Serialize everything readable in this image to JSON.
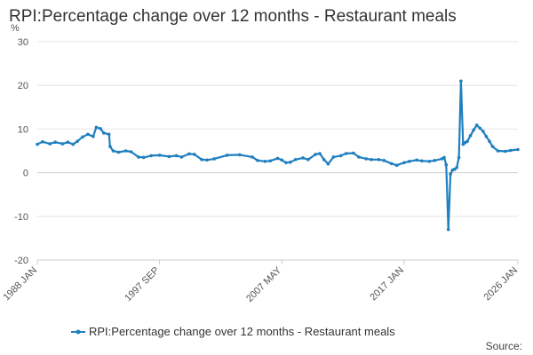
{
  "chart_data": {
    "type": "line",
    "title": "RPI:Percentage change over 12 months - Restaurant meals",
    "ylabel": "%",
    "ylim": [
      -20,
      30
    ],
    "yticks": [
      -20,
      -10,
      0,
      10,
      20,
      30
    ],
    "xlim": [
      "1988-01",
      "2026-01"
    ],
    "xtick_labels": [
      {
        "date": "1988-01",
        "label": "1988 JAN"
      },
      {
        "date": "1997-09",
        "label": "1997 SEP"
      },
      {
        "date": "2007-05",
        "label": "2007 MAY"
      },
      {
        "date": "2017-01",
        "label": "2017 JAN"
      },
      {
        "date": "2026-01",
        "label": "2026 JAN"
      }
    ],
    "grid": true,
    "legend_position": "bottom",
    "source": "Source:",
    "colors": {
      "series": "#1f7fbf",
      "grid": "#e6e6e6",
      "axis": "#ccc"
    },
    "series": [
      {
        "name": "RPI:Percentage change over 12 months - Restaurant meals",
        "points": [
          [
            "1988-01",
            6.5
          ],
          [
            "1988-06",
            7.1
          ],
          [
            "1989-01",
            6.6
          ],
          [
            "1989-06",
            7.0
          ],
          [
            "1990-01",
            6.6
          ],
          [
            "1990-06",
            7.0
          ],
          [
            "1990-11",
            6.5
          ],
          [
            "1991-03",
            7.2
          ],
          [
            "1991-08",
            8.2
          ],
          [
            "1992-01",
            8.8
          ],
          [
            "1992-06",
            8.3
          ],
          [
            "1992-09",
            10.4
          ],
          [
            "1993-01",
            10.1
          ],
          [
            "1993-04",
            9.1
          ],
          [
            "1993-09",
            8.8
          ],
          [
            "1993-10",
            6.0
          ],
          [
            "1994-01",
            5.0
          ],
          [
            "1994-06",
            4.7
          ],
          [
            "1995-01",
            5.0
          ],
          [
            "1995-06",
            4.8
          ],
          [
            "1996-01",
            3.6
          ],
          [
            "1996-06",
            3.5
          ],
          [
            "1997-01",
            3.9
          ],
          [
            "1997-09",
            4.0
          ],
          [
            "1998-06",
            3.7
          ],
          [
            "1999-01",
            3.9
          ],
          [
            "1999-06",
            3.6
          ],
          [
            "2000-01",
            4.3
          ],
          [
            "2000-06",
            4.2
          ],
          [
            "2001-01",
            3.0
          ],
          [
            "2001-06",
            2.9
          ],
          [
            "2002-01",
            3.2
          ],
          [
            "2003-01",
            4.0
          ],
          [
            "2004-01",
            4.1
          ],
          [
            "2005-01",
            3.6
          ],
          [
            "2005-06",
            2.8
          ],
          [
            "2006-01",
            2.6
          ],
          [
            "2006-06",
            2.7
          ],
          [
            "2007-01",
            3.3
          ],
          [
            "2007-05",
            2.9
          ],
          [
            "2007-09",
            2.3
          ],
          [
            "2008-01",
            2.4
          ],
          [
            "2008-06",
            3.0
          ],
          [
            "2009-01",
            3.4
          ],
          [
            "2009-06",
            3.0
          ],
          [
            "2010-01",
            4.2
          ],
          [
            "2010-05",
            4.4
          ],
          [
            "2010-09",
            3.0
          ],
          [
            "2011-01",
            2.0
          ],
          [
            "2011-06",
            3.6
          ],
          [
            "2012-01",
            3.9
          ],
          [
            "2012-06",
            4.4
          ],
          [
            "2013-01",
            4.5
          ],
          [
            "2013-06",
            3.6
          ],
          [
            "2014-01",
            3.2
          ],
          [
            "2014-06",
            3.0
          ],
          [
            "2015-01",
            3.0
          ],
          [
            "2015-06",
            2.8
          ],
          [
            "2016-01",
            2.1
          ],
          [
            "2016-06",
            1.7
          ],
          [
            "2017-01",
            2.3
          ],
          [
            "2017-06",
            2.6
          ],
          [
            "2018-01",
            2.9
          ],
          [
            "2018-06",
            2.7
          ],
          [
            "2019-01",
            2.6
          ],
          [
            "2019-06",
            2.8
          ],
          [
            "2020-01",
            3.2
          ],
          [
            "2020-03",
            3.5
          ],
          [
            "2020-05",
            1.8
          ],
          [
            "2020-07",
            -13.0
          ],
          [
            "2020-09",
            -0.3
          ],
          [
            "2020-11",
            0.6
          ],
          [
            "2021-01",
            0.8
          ],
          [
            "2021-03",
            1.2
          ],
          [
            "2021-05",
            3.5
          ],
          [
            "2021-07",
            21.0
          ],
          [
            "2021-09",
            6.5
          ],
          [
            "2021-11",
            6.9
          ],
          [
            "2022-01",
            7.2
          ],
          [
            "2022-04",
            8.5
          ],
          [
            "2022-07",
            9.8
          ],
          [
            "2022-10",
            10.9
          ],
          [
            "2023-01",
            10.2
          ],
          [
            "2023-04",
            9.5
          ],
          [
            "2023-07",
            8.3
          ],
          [
            "2023-10",
            7.2
          ],
          [
            "2024-01",
            6.0
          ],
          [
            "2024-06",
            5.0
          ],
          [
            "2025-01",
            4.9
          ],
          [
            "2025-06",
            5.1
          ],
          [
            "2026-01",
            5.3
          ]
        ]
      }
    ]
  }
}
